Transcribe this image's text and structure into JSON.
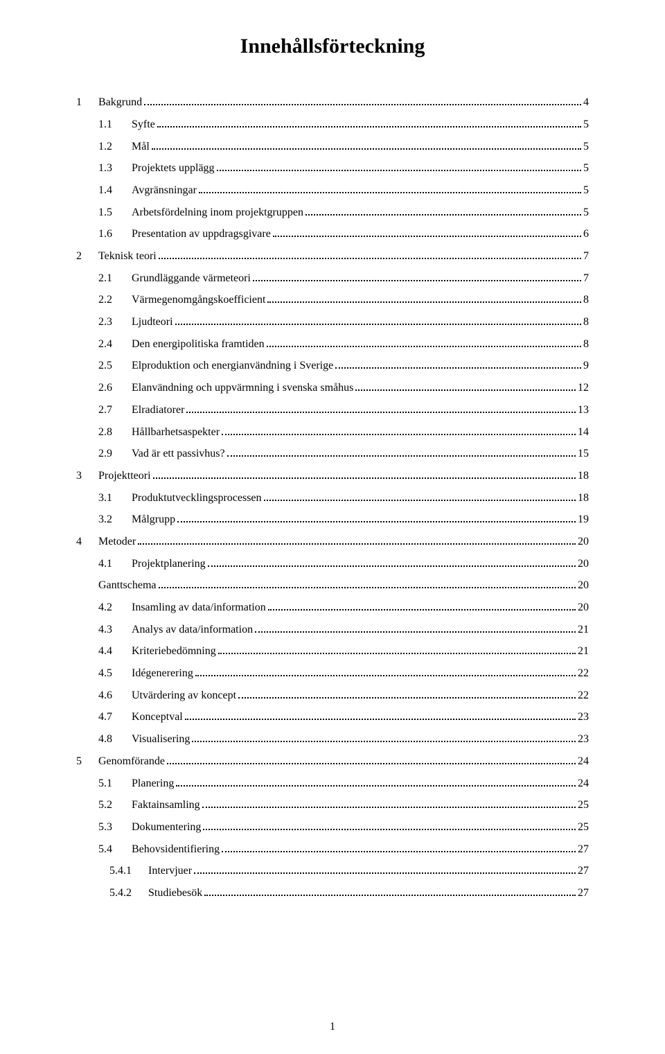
{
  "title": "Innehållsförteckning",
  "page_number": "1",
  "entries": [
    {
      "level": 0,
      "num": "1",
      "label": "Bakgrund",
      "page": "4"
    },
    {
      "level": 1,
      "num": "1.1",
      "label": "Syfte",
      "page": "5"
    },
    {
      "level": 1,
      "num": "1.2",
      "label": "Mål",
      "page": "5"
    },
    {
      "level": 1,
      "num": "1.3",
      "label": "Projektets upplägg",
      "page": "5"
    },
    {
      "level": 1,
      "num": "1.4",
      "label": "Avgränsningar",
      "page": "5"
    },
    {
      "level": 1,
      "num": "1.5",
      "label": "Arbetsfördelning inom projektgruppen",
      "page": "5"
    },
    {
      "level": 1,
      "num": "1.6",
      "label": "Presentation av uppdragsgivare",
      "page": "6"
    },
    {
      "level": 0,
      "num": "2",
      "label": "Teknisk teori",
      "page": "7"
    },
    {
      "level": 1,
      "num": "2.1",
      "label": "Grundläggande värmeteori",
      "page": "7"
    },
    {
      "level": 1,
      "num": "2.2",
      "label": "Värmegenomgångskoefficient",
      "page": "8"
    },
    {
      "level": 1,
      "num": "2.3",
      "label": "Ljudteori",
      "page": "8"
    },
    {
      "level": 1,
      "num": "2.4",
      "label": "Den energipolitiska framtiden",
      "page": "8"
    },
    {
      "level": 1,
      "num": "2.5",
      "label": "Elproduktion och energianvändning i Sverige",
      "page": "9"
    },
    {
      "level": 1,
      "num": "2.6",
      "label": "Elanvändning och uppvärmning i svenska småhus",
      "page": "12"
    },
    {
      "level": 1,
      "num": "2.7",
      "label": "Elradiatorer",
      "page": "13"
    },
    {
      "level": 1,
      "num": "2.8",
      "label": "Hållbarhetsaspekter",
      "page": "14"
    },
    {
      "level": 1,
      "num": "2.9",
      "label": "Vad är ett passivhus?",
      "page": "15"
    },
    {
      "level": 0,
      "num": "3",
      "label": "Projektteori",
      "page": "18"
    },
    {
      "level": 1,
      "num": "3.1",
      "label": "Produktutvecklingsprocessen",
      "page": "18"
    },
    {
      "level": 1,
      "num": "3.2",
      "label": "Målgrupp",
      "page": "19"
    },
    {
      "level": 0,
      "num": "4",
      "label": "Metoder",
      "page": "20"
    },
    {
      "level": 1,
      "num": "4.1",
      "label": "Projektplanering",
      "page": "20"
    },
    {
      "level": "1b",
      "num": "",
      "label": "Ganttschema",
      "page": "20"
    },
    {
      "level": 1,
      "num": "4.2",
      "label": "Insamling av data/information",
      "page": "20"
    },
    {
      "level": 1,
      "num": "4.3",
      "label": "Analys av data/information",
      "page": "21"
    },
    {
      "level": 1,
      "num": "4.4",
      "label": "Kriteriebedömning",
      "page": "21"
    },
    {
      "level": 1,
      "num": "4.5",
      "label": "Idégenerering",
      "page": "22"
    },
    {
      "level": 1,
      "num": "4.6",
      "label": "Utvärdering av koncept",
      "page": "22"
    },
    {
      "level": 1,
      "num": "4.7",
      "label": "Konceptval",
      "page": "23"
    },
    {
      "level": 1,
      "num": "4.8",
      "label": "Visualisering",
      "page": "23"
    },
    {
      "level": 0,
      "num": "5",
      "label": "Genomförande",
      "page": "24"
    },
    {
      "level": 1,
      "num": "5.1",
      "label": "Planering",
      "page": "24"
    },
    {
      "level": 1,
      "num": "5.2",
      "label": "Faktainsamling",
      "page": "25"
    },
    {
      "level": 1,
      "num": "5.3",
      "label": "Dokumentering",
      "page": "25"
    },
    {
      "level": 1,
      "num": "5.4",
      "label": "Behovsidentifiering",
      "page": "27"
    },
    {
      "level": 2,
      "num": "5.4.1",
      "label": "Intervjuer",
      "page": "27"
    },
    {
      "level": 2,
      "num": "5.4.2",
      "label": "Studiebesök",
      "page": "27"
    }
  ]
}
